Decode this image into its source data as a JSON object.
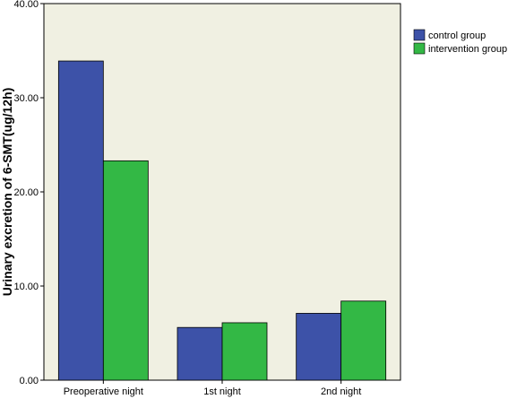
{
  "chart_data": {
    "type": "bar",
    "title": "",
    "xlabel": "",
    "ylabel": "Urinary excretion of 6-SMT(ug/12h)",
    "categories": [
      "Preoperative night",
      "1st night",
      "2nd night"
    ],
    "series": [
      {
        "name": "control group",
        "values": [
          33.9,
          5.6,
          7.1
        ],
        "color": "#3d52a8"
      },
      {
        "name": "intervention group",
        "values": [
          23.3,
          6.1,
          8.4
        ],
        "color": "#33b845"
      }
    ],
    "ylim": [
      0,
      40
    ],
    "yticks": [
      0,
      10,
      20,
      30,
      40
    ],
    "ytick_labels": [
      "0.00",
      "10.00",
      "20.00",
      "30.00",
      "40.00"
    ],
    "grid": false,
    "legend_position": "top-right outside plot",
    "plot_background": "#f0f0e2"
  }
}
